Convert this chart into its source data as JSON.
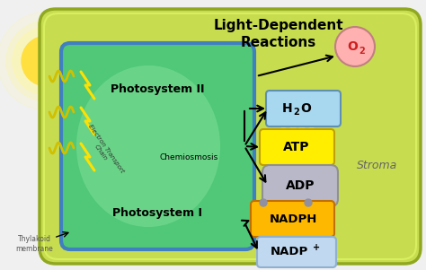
{
  "bg_color": "#f0f0f0",
  "outer_cell_color": "#c8dc50",
  "outer_cell_edge": "#90a820",
  "outer_cell_edge2": "#a8c030",
  "inner_thylakoid_color": "#50c878",
  "inner_thylakoid_color2": "#70d890",
  "inner_thylakoid_edge": "#4080c0",
  "title": "Light-Dependent\nReactions",
  "title_fontsize": 11,
  "sun_color": "#FFE040",
  "aura_color": "#FFF8A0",
  "o2_circle_color": "#ffb0b0",
  "h2o_box_color": "#a8d8f0",
  "atp_box_color": "#FFEE00",
  "adp_box_color": "#b8b8c8",
  "nadph_box_color": "#FFB800",
  "nadp_box_color": "#c0d8f0",
  "stroma_text": "Stroma",
  "photosystem2_text": "Photosystem II",
  "photosystem1_text": "Photosystem I",
  "electron_transport_text": "Electron Transport\nChain",
  "chemiosmosis_text": "Chemiosmosis",
  "thylakoid_text": "Thylakoid\nmembrane",
  "wave_color": "#d0c000",
  "arrow_color": "#000000"
}
